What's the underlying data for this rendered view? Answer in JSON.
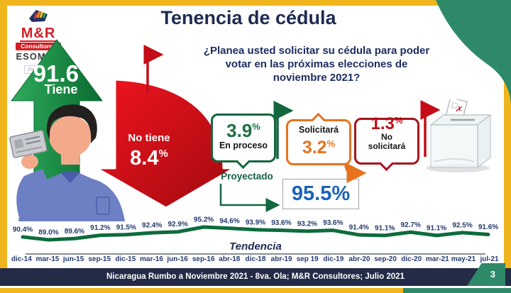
{
  "title": "Tenencia de cédula",
  "logo": {
    "brand": "M&R",
    "division": "Consultores",
    "org": "ESOMAR",
    "membership": "member"
  },
  "tiene": {
    "value": "91.6",
    "unit": "%",
    "label": "Tiene"
  },
  "no_tiene": {
    "label": "No tiene",
    "value": "8.4",
    "unit": "%"
  },
  "question": {
    "line1": "¿Planea usted solicitar su cédula para poder",
    "line2": "votar en las próximas elecciones de",
    "line3": "noviembre 2021?"
  },
  "flow": {
    "en_proceso": {
      "value": "3.9",
      "unit": "%",
      "label": "En proceso"
    },
    "solicitara": {
      "label": "Solicitará",
      "value": "3.2",
      "unit": "%"
    },
    "no_solicitara": {
      "value": "1.3",
      "unit": "%",
      "label_line1": "No",
      "label_line2": "solicitará"
    },
    "proyectado": {
      "label": "Proyectado",
      "value": "95.5%"
    }
  },
  "chart_data": {
    "type": "line",
    "title": "Tendencia",
    "categories": [
      "dic-14",
      "mar-15",
      "jun-15",
      "sep-15",
      "dic-15",
      "mar-16",
      "jun-16",
      "sep-16",
      "abr-18",
      "dic-18",
      "abr-19",
      "sep 19",
      "dic-19",
      "abr-20",
      "sep-20",
      "dic-20",
      "mar-21",
      "may-21",
      "jul-21"
    ],
    "series": [
      {
        "name": "Tiene cédula",
        "values": [
          90.4,
          89.0,
          89.6,
          91.2,
          91.5,
          92.4,
          92.9,
          95.2,
          94.6,
          93.9,
          93.6,
          93.2,
          93.6,
          91.4,
          91.1,
          92.7,
          91.1,
          92.5,
          91.6
        ]
      }
    ],
    "value_suffix": "%",
    "ylim": [
      88,
      96
    ],
    "line_color": "#0d6b3c",
    "grid": false,
    "legend": "none"
  },
  "footer": {
    "text": "Nicaragua Rumbo a Noviembre 2021 - 8va. Ola; M&R Consultores; Julio 2021",
    "page": "3"
  },
  "colors": {
    "gold": "#f0b51d",
    "navy": "#232b47",
    "teal_green": "#2e8968",
    "dark_green": "#13673f",
    "green_arrow": "#169a47",
    "red_arrow": "#d90f18",
    "orange": "#e7731e",
    "dark_red": "#b01019",
    "projected_blue": "#1a64b8"
  }
}
